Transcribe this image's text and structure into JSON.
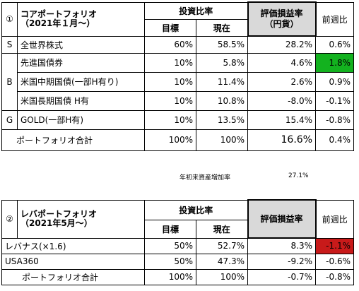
{
  "table1": {
    "circle_num": "①",
    "title_line1": "コアポートフォリオ",
    "title_line2": "（2021年１月～）",
    "group_header": "投資比率",
    "col_target": "目標",
    "col_current": "現在",
    "col_eval": "評価損益率\n（円貨）",
    "col_prev": "前週比",
    "rows": [
      {
        "letter": "S",
        "name": "全世界株式",
        "target": "60%",
        "current": "58.5%",
        "eval": "28.2%",
        "prev": "0.6%"
      },
      {
        "letter": "",
        "name": "先進国債券",
        "target": "10%",
        "current": "5.8%",
        "eval": "4.6%",
        "prev": "1.8%",
        "prev_color": "#13b21f"
      },
      {
        "letter": "B",
        "name": "米国中期国債(一部H有り)",
        "target": "10%",
        "current": "11.4%",
        "eval": "2.6%",
        "prev": "0.9%"
      },
      {
        "letter": "",
        "name": "米国長期国債 H有",
        "target": "10%",
        "current": "10.8%",
        "eval": "-8.0%",
        "prev": "-0.1%"
      },
      {
        "letter": "G",
        "name": "GOLD(一部H有)",
        "target": "10%",
        "current": "13.5%",
        "eval": "15.4%",
        "prev": "-0.8%"
      }
    ],
    "total": {
      "label": "ポートフォリオ合計",
      "target": "100%",
      "current": "100%",
      "eval": "16.6%",
      "prev": "0.4%"
    },
    "annotation_label": "年初来資産増加率",
    "annotation_value": "27.1%"
  },
  "table2": {
    "circle_num": "②",
    "title_line1": "レバポートフォリオ",
    "title_line2": "（2021年5月～）",
    "group_header": "投資比率",
    "col_target": "目標",
    "col_current": "現在",
    "col_eval": "評価損益率",
    "col_prev": "前週比",
    "rows": [
      {
        "name": "レバナス(×1.6)",
        "target": "50%",
        "current": "52.7%",
        "eval": "8.3%",
        "prev": "-1.1%",
        "prev_color": "#c81a1a"
      },
      {
        "name": "USA360",
        "target": "50%",
        "current": "47.3%",
        "eval": "-9.2%",
        "prev": "-0.6%"
      }
    ],
    "total": {
      "label": "ポートフォリオ合計",
      "target": "100%",
      "current": "100%",
      "eval": "-0.7%",
      "prev": "-0.8%"
    }
  }
}
